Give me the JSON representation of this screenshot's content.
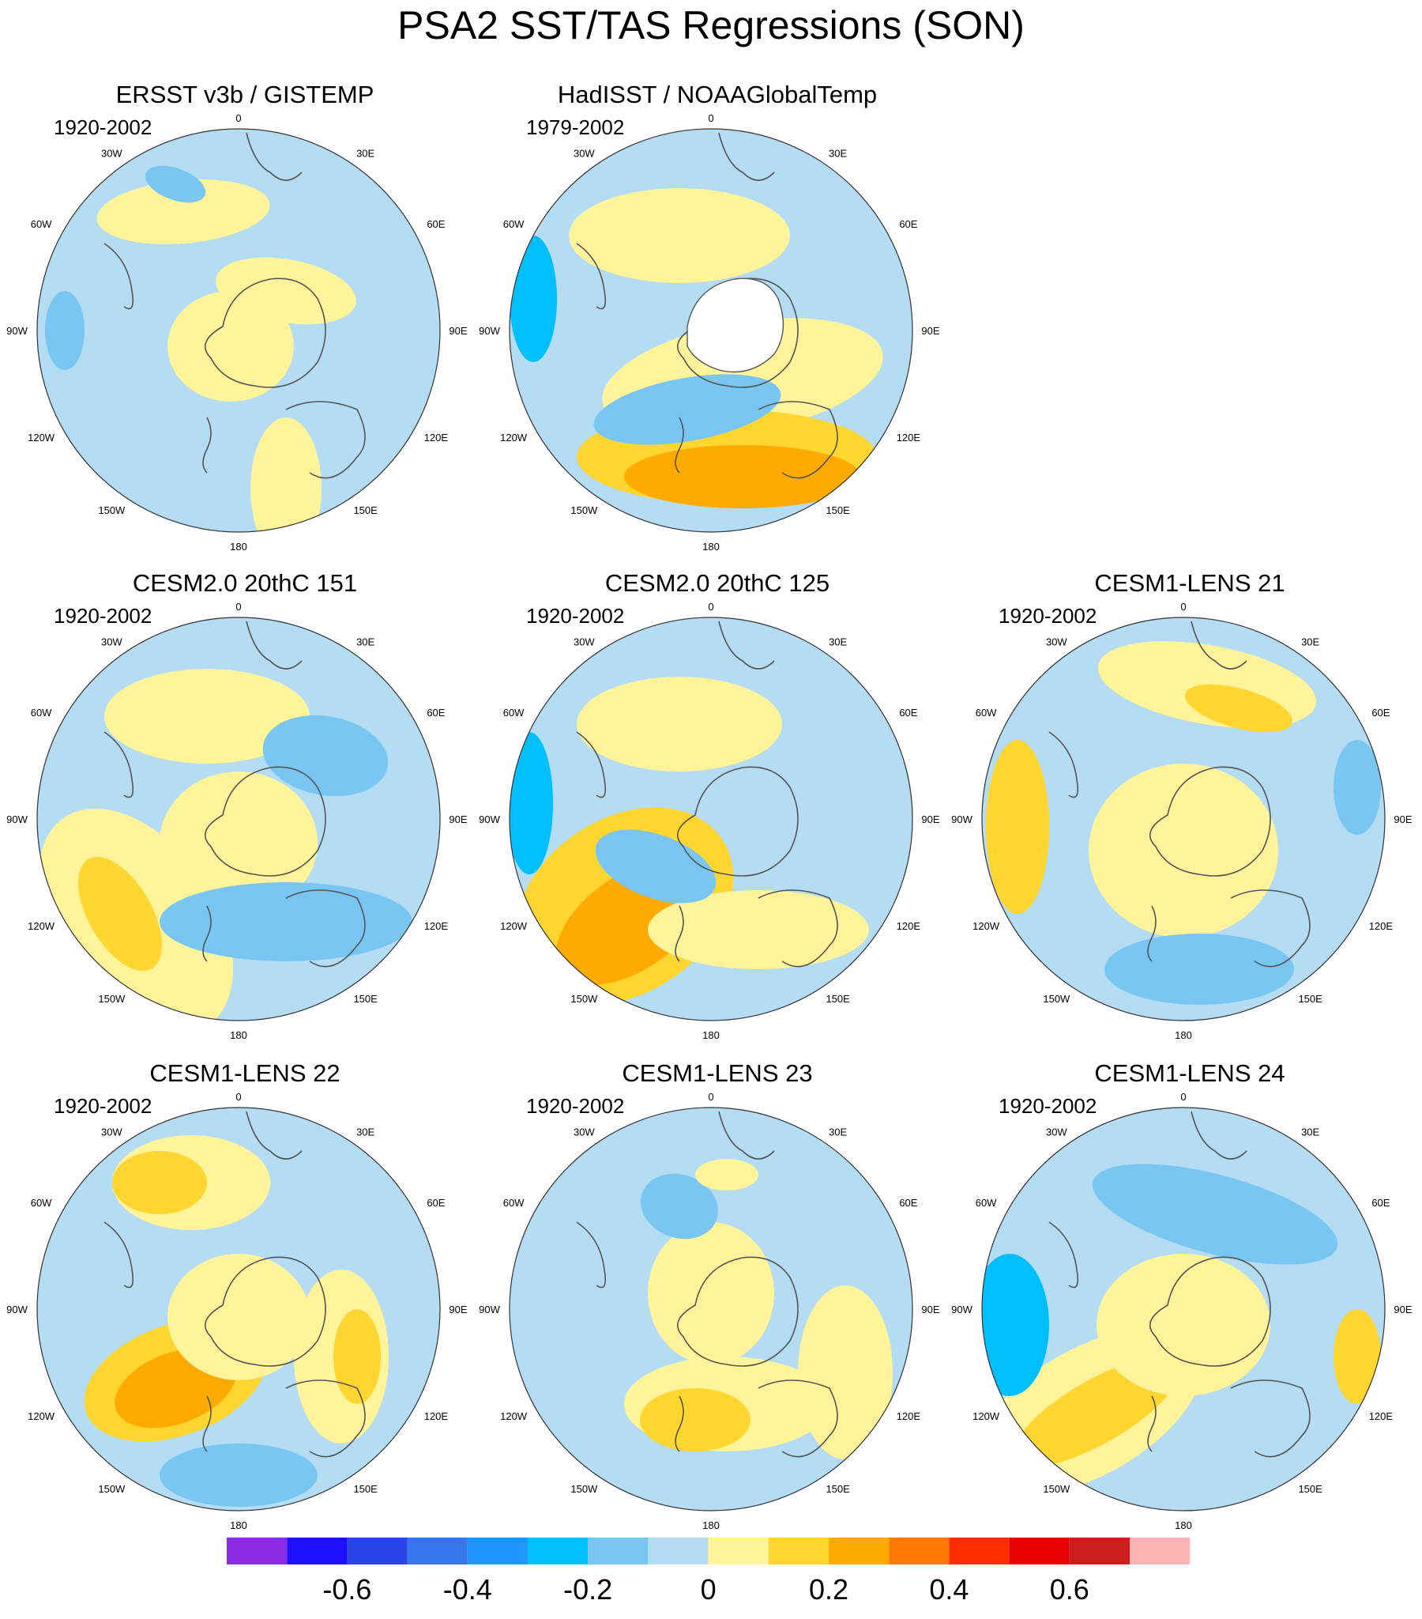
{
  "title": "PSA2 SST/TAS Regressions (SON)",
  "longitude_labels": [
    "0",
    "30E",
    "60E",
    "90E",
    "120E",
    "150E",
    "180",
    "150W",
    "120W",
    "90W",
    "60W",
    "30W"
  ],
  "panels": [
    {
      "title": "ERSST v3b / GISTEMP",
      "period": "1920-2002",
      "blank_antarctica": false
    },
    {
      "title": "HadISST / NOAAGlobalTemp",
      "period": "1979-2002",
      "blank_antarctica": true
    },
    {
      "title": "CESM2.0 20thC 151",
      "period": "1920-2002",
      "blank_antarctica": false
    },
    {
      "title": "CESM2.0 20thC 125",
      "period": "1920-2002",
      "blank_antarctica": false
    },
    {
      "title": "CESM1-LENS 21",
      "period": "1920-2002",
      "blank_antarctica": false
    },
    {
      "title": "CESM1-LENS 22",
      "period": "1920-2002",
      "blank_antarctica": false
    },
    {
      "title": "CESM1-LENS 23",
      "period": "1920-2002",
      "blank_antarctica": false
    },
    {
      "title": "CESM1-LENS 24",
      "period": "1920-2002",
      "blank_antarctica": false
    }
  ],
  "colorbar": {
    "colors": [
      "#8a2be2",
      "#1e0fff",
      "#2b44e6",
      "#3576ec",
      "#1e95ff",
      "#00bfff",
      "#79c6f2",
      "#b4dcf2",
      "#fff49a",
      "#ffd530",
      "#ffaa00",
      "#ff7a00",
      "#ff2e00",
      "#e60000",
      "#cc1d1d",
      "#ffb3b3"
    ],
    "tick_labels": [
      "-0.6",
      "-0.4",
      "-0.2",
      "0",
      "0.2",
      "0.4",
      "0.6"
    ]
  }
}
